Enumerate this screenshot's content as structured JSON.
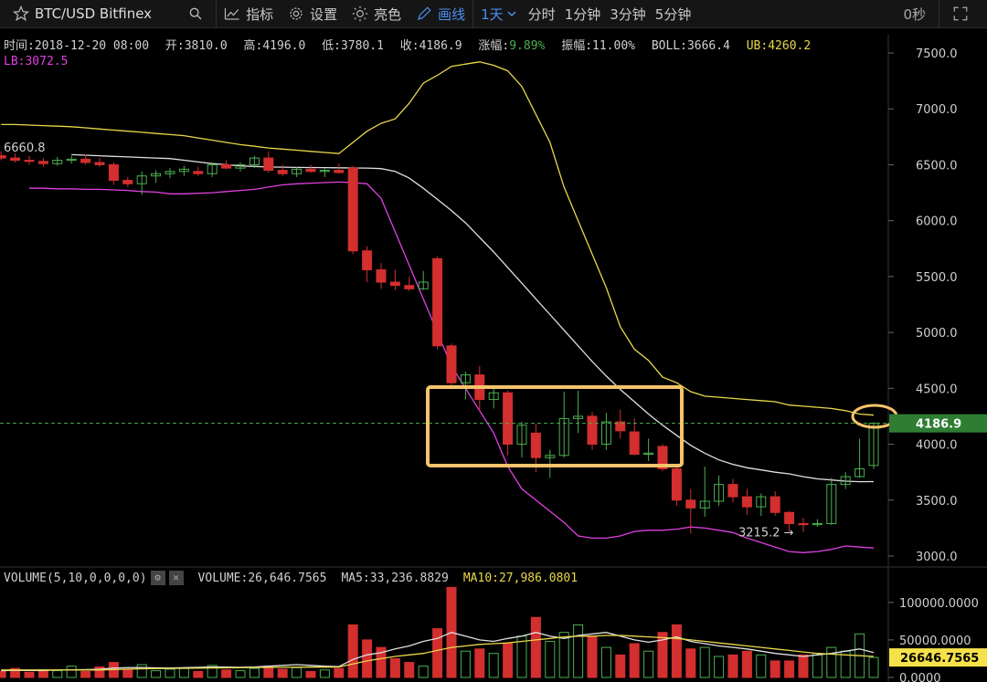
{
  "toolbar": {
    "symbol": "BTC/USD Bitfinex",
    "indicators_label": "指标",
    "settings_label": "设置",
    "theme_label": "亮色",
    "draw_label": "画线",
    "active_interval": "1天",
    "intervals": [
      "分时",
      "1分钟",
      "3分钟",
      "5分钟"
    ],
    "timer": "0秒"
  },
  "ohlc": {
    "time": "时间:2018-12-20 08:00",
    "open": "开:3810.0",
    "high": "高:4196.0",
    "low": "低:3780.1",
    "close": "收:4186.9",
    "change_label": "涨幅:",
    "change_value": "9.89%",
    "amplitude": "振幅:11.00%",
    "boll": "BOLL:3666.4",
    "ub": "UB:4260.2",
    "lb": "LB:3072.5"
  },
  "price_axis": {
    "ticks": [
      "7500.0",
      "7000.0",
      "6500.0",
      "6000.0",
      "5500.0",
      "5000.0",
      "4500.0",
      "4000.0",
      "3500.0",
      "3000.0"
    ],
    "current_price": "4186.9",
    "high_marker": "6660.8",
    "low_marker": "3215.2"
  },
  "volume": {
    "label": "VOLUME(5,10,0,0,0,0)",
    "value": "VOLUME:26,646.7565",
    "ma5": "MA5:33,236.8829",
    "ma10": "MA10:27,986.0801",
    "ticks": [
      "100000.0000",
      "50000.0000",
      "0.0000"
    ],
    "current": "26646.7565"
  },
  "colors": {
    "up": "#4caf50",
    "down": "#d32f2f",
    "ub": "#e8d84a",
    "lb": "#e040e0",
    "mid": "#e0e0e0",
    "highlight": "#f5c36b",
    "accent": "#4a8ff0"
  },
  "chart_data": {
    "type": "candlestick",
    "price_range": [
      3000,
      7500
    ],
    "candles": [
      {
        "o": 6580,
        "h": 6620,
        "l": 6540,
        "c": 6560
      },
      {
        "o": 6560,
        "h": 6600,
        "l": 6520,
        "c": 6540
      },
      {
        "o": 6540,
        "h": 6580,
        "l": 6500,
        "c": 6530
      },
      {
        "o": 6530,
        "h": 6560,
        "l": 6480,
        "c": 6510
      },
      {
        "o": 6510,
        "h": 6570,
        "l": 6490,
        "c": 6540
      },
      {
        "o": 6540,
        "h": 6580,
        "l": 6510,
        "c": 6550
      },
      {
        "o": 6550,
        "h": 6590,
        "l": 6500,
        "c": 6520
      },
      {
        "o": 6520,
        "h": 6560,
        "l": 6480,
        "c": 6500
      },
      {
        "o": 6500,
        "h": 6520,
        "l": 6320,
        "c": 6360
      },
      {
        "o": 6360,
        "h": 6390,
        "l": 6300,
        "c": 6330
      },
      {
        "o": 6330,
        "h": 6440,
        "l": 6230,
        "c": 6400
      },
      {
        "o": 6400,
        "h": 6450,
        "l": 6340,
        "c": 6420
      },
      {
        "o": 6420,
        "h": 6470,
        "l": 6380,
        "c": 6440
      },
      {
        "o": 6440,
        "h": 6490,
        "l": 6400,
        "c": 6460
      },
      {
        "o": 6440,
        "h": 6480,
        "l": 6400,
        "c": 6420
      },
      {
        "o": 6420,
        "h": 6520,
        "l": 6390,
        "c": 6500
      },
      {
        "o": 6500,
        "h": 6540,
        "l": 6460,
        "c": 6470
      },
      {
        "o": 6470,
        "h": 6520,
        "l": 6440,
        "c": 6500
      },
      {
        "o": 6500,
        "h": 6580,
        "l": 6470,
        "c": 6560
      },
      {
        "o": 6560,
        "h": 6620,
        "l": 6430,
        "c": 6450
      },
      {
        "o": 6450,
        "h": 6500,
        "l": 6400,
        "c": 6420
      },
      {
        "o": 6420,
        "h": 6480,
        "l": 6390,
        "c": 6460
      },
      {
        "o": 6460,
        "h": 6500,
        "l": 6430,
        "c": 6440
      },
      {
        "o": 6440,
        "h": 6470,
        "l": 6390,
        "c": 6450
      },
      {
        "o": 6450,
        "h": 6510,
        "l": 6420,
        "c": 6430
      },
      {
        "o": 6470,
        "h": 6490,
        "l": 5700,
        "c": 5730
      },
      {
        "o": 5730,
        "h": 5770,
        "l": 5450,
        "c": 5560
      },
      {
        "o": 5560,
        "h": 5620,
        "l": 5390,
        "c": 5450
      },
      {
        "o": 5450,
        "h": 5560,
        "l": 5380,
        "c": 5420
      },
      {
        "o": 5420,
        "h": 5500,
        "l": 5370,
        "c": 5390
      },
      {
        "o": 5390,
        "h": 5550,
        "l": 5380,
        "c": 5450
      },
      {
        "o": 5660,
        "h": 5680,
        "l": 4850,
        "c": 4880
      },
      {
        "o": 4880,
        "h": 4900,
        "l": 4500,
        "c": 4550
      },
      {
        "o": 4550,
        "h": 4650,
        "l": 4400,
        "c": 4620
      },
      {
        "o": 4620,
        "h": 4700,
        "l": 4300,
        "c": 4400
      },
      {
        "o": 4400,
        "h": 4500,
        "l": 4320,
        "c": 4460
      },
      {
        "o": 4460,
        "h": 4480,
        "l": 3900,
        "c": 4000
      },
      {
        "o": 4000,
        "h": 4200,
        "l": 3880,
        "c": 4170
      },
      {
        "o": 4100,
        "h": 4180,
        "l": 3750,
        "c": 3880
      },
      {
        "o": 3880,
        "h": 3950,
        "l": 3700,
        "c": 3900
      },
      {
        "o": 3900,
        "h": 4470,
        "l": 3880,
        "c": 4230
      },
      {
        "o": 4230,
        "h": 4480,
        "l": 4100,
        "c": 4250
      },
      {
        "o": 4250,
        "h": 4290,
        "l": 3950,
        "c": 4000
      },
      {
        "o": 4000,
        "h": 4280,
        "l": 3950,
        "c": 4200
      },
      {
        "o": 4200,
        "h": 4310,
        "l": 4050,
        "c": 4120
      },
      {
        "o": 4110,
        "h": 4230,
        "l": 3900,
        "c": 3910
      },
      {
        "o": 3910,
        "h": 4050,
        "l": 3850,
        "c": 3920
      },
      {
        "o": 3980,
        "h": 4000,
        "l": 3760,
        "c": 3780
      },
      {
        "o": 3780,
        "h": 3800,
        "l": 3450,
        "c": 3500
      },
      {
        "o": 3500,
        "h": 3600,
        "l": 3200,
        "c": 3430
      },
      {
        "o": 3430,
        "h": 3800,
        "l": 3350,
        "c": 3490
      },
      {
        "o": 3490,
        "h": 3720,
        "l": 3450,
        "c": 3640
      },
      {
        "o": 3640,
        "h": 3690,
        "l": 3480,
        "c": 3530
      },
      {
        "o": 3530,
        "h": 3600,
        "l": 3370,
        "c": 3440
      },
      {
        "o": 3440,
        "h": 3560,
        "l": 3360,
        "c": 3530
      },
      {
        "o": 3530,
        "h": 3580,
        "l": 3360,
        "c": 3390
      },
      {
        "o": 3390,
        "h": 3400,
        "l": 3220,
        "c": 3290
      },
      {
        "o": 3290,
        "h": 3340,
        "l": 3215,
        "c": 3280
      },
      {
        "o": 3280,
        "h": 3330,
        "l": 3260,
        "c": 3290
      },
      {
        "o": 3290,
        "h": 3700,
        "l": 3280,
        "c": 3640
      },
      {
        "o": 3640,
        "h": 3750,
        "l": 3600,
        "c": 3710
      },
      {
        "o": 3710,
        "h": 4050,
        "l": 3700,
        "c": 3780
      },
      {
        "o": 3810,
        "h": 4196,
        "l": 3780,
        "c": 4186.9
      }
    ],
    "ub": [
      6860,
      6860,
      6855,
      6850,
      6845,
      6840,
      6830,
      6820,
      6810,
      6800,
      6790,
      6780,
      6770,
      6760,
      6740,
      6720,
      6700,
      6680,
      6665,
      6650,
      6640,
      6630,
      6620,
      6610,
      6600,
      6700,
      6800,
      6870,
      6910,
      7050,
      7230,
      7300,
      7380,
      7400,
      7420,
      7390,
      7340,
      7200,
      6950,
      6700,
      6300,
      6000,
      5700,
      5400,
      5050,
      4850,
      4750,
      4600,
      4550,
      4470,
      4430,
      4420,
      4410,
      4400,
      4390,
      4380,
      4350,
      4340,
      4330,
      4320,
      4300,
      4270,
      4260
    ],
    "mid": [
      6590,
      6585,
      6580,
      6575,
      6570,
      6565,
      6560,
      6555,
      6540,
      6525,
      6510,
      6500,
      6490,
      6485,
      6480,
      6478,
      6476,
      6475,
      6474,
      6473,
      6471,
      6470,
      6465,
      6440,
      6380,
      6290,
      6190,
      6090,
      5980,
      5850,
      5720,
      5580,
      5440,
      5300,
      5160,
      5020,
      4880,
      4740,
      4610,
      4490,
      4380,
      4270,
      4170,
      4080,
      3990,
      3920,
      3860,
      3820,
      3790,
      3770,
      3750,
      3735,
      3710,
      3690,
      3680,
      3670,
      3665,
      3666
    ],
    "lb": [
      6290,
      6290,
      6285,
      6285,
      6280,
      6280,
      6275,
      6270,
      6260,
      6255,
      6240,
      6240,
      6245,
      6250,
      6260,
      6270,
      6280,
      6300,
      6320,
      6330,
      6335,
      6340,
      6345,
      6340,
      6330,
      6200,
      5900,
      5600,
      5300,
      5000,
      4700,
      4500,
      4300,
      4100,
      3800,
      3600,
      3500,
      3400,
      3300,
      3180,
      3160,
      3160,
      3180,
      3220,
      3230,
      3230,
      3240,
      3260,
      3250,
      3230,
      3210,
      3160,
      3120,
      3080,
      3040,
      3030,
      3040,
      3060,
      3090,
      3080,
      3072
    ],
    "volumes": [
      8000,
      12000,
      7000,
      10000,
      9000,
      15000,
      8000,
      14000,
      20000,
      10000,
      17000,
      9000,
      11000,
      12000,
      8000,
      16000,
      10000,
      9000,
      12000,
      15000,
      11000,
      13000,
      8000,
      10000,
      12000,
      70000,
      50000,
      40000,
      25000,
      20000,
      15000,
      65000,
      120000,
      35000,
      38000,
      32000,
      45000,
      55000,
      80000,
      48000,
      60000,
      70000,
      55000,
      40000,
      30000,
      45000,
      35000,
      60000,
      70000,
      38000,
      40000,
      28000,
      30000,
      35000,
      30000,
      22000,
      22000,
      30000,
      32000,
      40000,
      35000,
      58000,
      26646
    ],
    "vol_ma5": [
      9000,
      9500,
      9200,
      9100,
      9800,
      10200,
      10500,
      11000,
      12500,
      13000,
      13200,
      12800,
      12500,
      13000,
      13500,
      14000,
      13800,
      13500,
      14000,
      15000,
      16000,
      17000,
      16000,
      15000,
      14500,
      24000,
      30000,
      33000,
      38000,
      42000,
      48000,
      52000,
      60000,
      55000,
      50000,
      48000,
      52000,
      55000,
      60000,
      55000,
      52000,
      56000,
      58000,
      60000,
      55000,
      50000,
      47000,
      50000,
      54000,
      48000,
      45000,
      42000,
      40000,
      38000,
      35000,
      32000,
      30000,
      28000,
      30000,
      32000,
      35000,
      38000,
      33237
    ],
    "vol_ma10": [
      10000,
      10000,
      10000,
      10000,
      10000,
      10000,
      10000,
      10000,
      10500,
      11000,
      11500,
      11800,
      12000,
      12200,
      12400,
      12600,
      12800,
      13000,
      13200,
      13400,
      13500,
      13600,
      13700,
      13800,
      13900,
      18000,
      22000,
      25000,
      28000,
      30000,
      32000,
      36000,
      40000,
      42000,
      44000,
      45000,
      46000,
      48000,
      50000,
      52000,
      54000,
      55000,
      55000,
      56000,
      56000,
      55000,
      54000,
      53000,
      52000,
      50000,
      48000,
      46000,
      44000,
      42000,
      40000,
      38000,
      36000,
      34000,
      32000,
      31000,
      30000,
      29000,
      27986
    ]
  }
}
